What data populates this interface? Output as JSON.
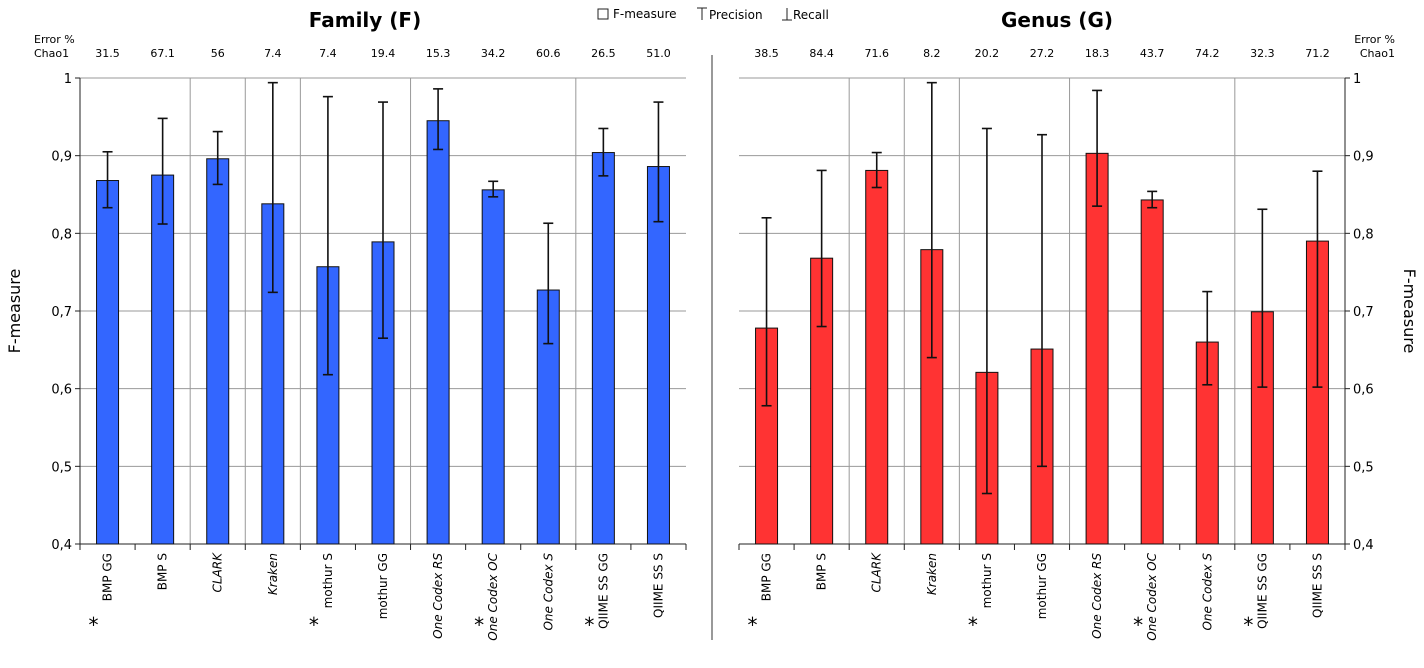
{
  "legend": {
    "f_measure": "F-measure",
    "precision": "Precision",
    "recall": "Recall"
  },
  "chart_data": [
    {
      "type": "bar",
      "title": "Family (F)",
      "ylabel": "F-measure",
      "ylim": [
        0.4,
        1.0
      ],
      "yticks": [
        "0,4",
        "0,5",
        "0,6",
        "0,7",
        "0,8",
        "0,9",
        "1"
      ],
      "error_label_1": "Error %",
      "error_label_2": "Chao1",
      "bar_color": "#3366ff",
      "categories": [
        "BMP GG",
        "BMP S",
        "CLARK",
        "Kraken",
        "mothur S",
        "mothur GG",
        "One Codex RS",
        "One Codex OC",
        "One Codex S",
        "QIIME SS GG",
        "QIIME SS S"
      ],
      "italic": [
        false,
        false,
        true,
        true,
        false,
        false,
        true,
        true,
        true,
        false,
        false
      ],
      "asterisk": [
        true,
        false,
        false,
        false,
        true,
        false,
        false,
        true,
        false,
        true,
        false
      ],
      "chao1_error": [
        "31.5",
        "67.1",
        "56",
        "7.4",
        "7.4",
        "19.4",
        "15.3",
        "34.2",
        "60.6",
        "26.5",
        "51.0"
      ],
      "f_measure": [
        0.868,
        0.875,
        0.896,
        0.838,
        0.757,
        0.789,
        0.945,
        0.856,
        0.727,
        0.904,
        0.886
      ],
      "precision": [
        0.905,
        0.948,
        0.931,
        0.994,
        0.976,
        0.969,
        0.986,
        0.867,
        0.813,
        0.935,
        0.969
      ],
      "recall": [
        0.833,
        0.812,
        0.863,
        0.724,
        0.618,
        0.665,
        0.908,
        0.847,
        0.658,
        0.874,
        0.815
      ],
      "group_separators_after": [
        1,
        2,
        3,
        5,
        8
      ]
    },
    {
      "type": "bar",
      "title": "Genus (G)",
      "ylabel": "F-measure",
      "ylim": [
        0.4,
        1.0
      ],
      "yticks": [
        "0,4",
        "0,5",
        "0,6",
        "0,7",
        "0,8",
        "0,9",
        "1"
      ],
      "error_label_1": "Error %",
      "error_label_2": "Chao1",
      "bar_color": "#ff3333",
      "categories": [
        "BMP GG",
        "BMP S",
        "CLARK",
        "Kraken",
        "mothur S",
        "mothur GG",
        "One Codex RS",
        "One Codex OC",
        "One Codex S",
        "QIIME SS GG",
        "QIIME SS S"
      ],
      "italic": [
        false,
        false,
        true,
        true,
        false,
        false,
        true,
        true,
        true,
        false,
        false
      ],
      "asterisk": [
        true,
        false,
        false,
        false,
        true,
        false,
        false,
        true,
        false,
        true,
        false
      ],
      "chao1_error": [
        "38.5",
        "84.4",
        "71.6",
        "8.2",
        "20.2",
        "27.2",
        "18.3",
        "43.7",
        "74.2",
        "32.3",
        "71.2"
      ],
      "f_measure": [
        0.678,
        0.768,
        0.881,
        0.779,
        0.621,
        0.651,
        0.903,
        0.843,
        0.66,
        0.699,
        0.79
      ],
      "precision": [
        0.82,
        0.881,
        0.904,
        0.994,
        0.935,
        0.927,
        0.984,
        0.854,
        0.725,
        0.831,
        0.88
      ],
      "recall": [
        0.578,
        0.68,
        0.859,
        0.64,
        0.465,
        0.5,
        0.835,
        0.833,
        0.605,
        0.602,
        0.602
      ],
      "group_separators_after": [
        1,
        2,
        3,
        5,
        8
      ]
    }
  ]
}
